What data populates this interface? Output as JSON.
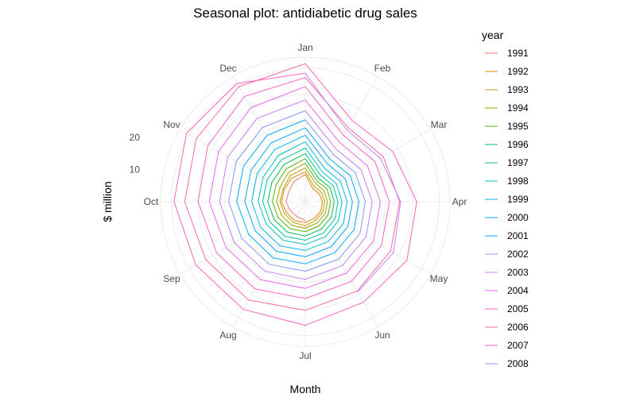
{
  "chart_data": {
    "type": "line",
    "coordinate_system": "polar",
    "title": "Seasonal plot: antidiabetic drug sales",
    "xlabel": "Month",
    "ylabel": "$ million",
    "categories": [
      "Jan",
      "Feb",
      "Mar",
      "Apr",
      "May",
      "Jun",
      "Jul",
      "Aug",
      "Sep",
      "Oct",
      "Nov",
      "Dec"
    ],
    "radial_ticks": [
      10,
      20
    ],
    "rlim": [
      0,
      27
    ],
    "legend_title": "year",
    "legend_position": "right",
    "grid": true,
    "series": [
      {
        "name": "1991",
        "color": "#F8766D",
        "values": [
          null,
          null,
          null,
          null,
          null,
          null,
          3.53,
          3.18,
          3.25,
          3.61,
          3.57,
          4.31
        ]
      },
      {
        "name": "1992",
        "color": "#E38900",
        "values": [
          5.09,
          2.81,
          2.99,
          3.2,
          3.37,
          3.54,
          3.92,
          4.07,
          4.05,
          4.44,
          4.53,
          5.07
        ]
      },
      {
        "name": "1993",
        "color": "#C49A00",
        "values": [
          5.61,
          3.3,
          3.52,
          3.61,
          3.78,
          3.99,
          4.5,
          4.48,
          4.51,
          4.72,
          4.77,
          5.63
        ]
      },
      {
        "name": "1994",
        "color": "#99A800",
        "values": [
          6.3,
          3.9,
          4.07,
          4.13,
          4.32,
          4.56,
          4.95,
          5.08,
          5.1,
          5.35,
          5.45,
          6.3
        ]
      },
      {
        "name": "1995",
        "color": "#53B400",
        "values": [
          7.2,
          4.43,
          4.7,
          4.72,
          4.9,
          5.2,
          5.6,
          5.8,
          5.85,
          6.15,
          6.3,
          7.1
        ]
      },
      {
        "name": "1996",
        "color": "#00BC56",
        "values": [
          8.05,
          5.0,
          5.35,
          5.4,
          5.65,
          5.95,
          6.4,
          6.6,
          6.7,
          7.0,
          7.2,
          8.0
        ]
      },
      {
        "name": "1997",
        "color": "#00C094",
        "values": [
          9.0,
          5.7,
          6.0,
          6.1,
          6.4,
          6.75,
          7.2,
          7.5,
          7.6,
          7.95,
          8.2,
          9.0
        ]
      },
      {
        "name": "1998",
        "color": "#00BFC4",
        "values": [
          10.0,
          6.4,
          6.7,
          6.85,
          7.15,
          7.55,
          8.0,
          8.3,
          8.4,
          8.8,
          9.1,
          10.0
        ]
      },
      {
        "name": "1999",
        "color": "#00B6EB",
        "values": [
          11.2,
          7.2,
          7.6,
          7.8,
          8.2,
          8.6,
          9.1,
          9.5,
          9.6,
          10.0,
          10.4,
          11.3
        ]
      },
      {
        "name": "2000",
        "color": "#06A4FF",
        "values": [
          12.4,
          8.2,
          8.6,
          8.8,
          9.2,
          9.7,
          10.3,
          10.7,
          10.8,
          11.3,
          11.7,
          12.7
        ]
      },
      {
        "name": "2001",
        "color": "#00A9FF",
        "values": [
          13.8,
          9.2,
          9.7,
          10.0,
          10.5,
          11.0,
          11.6,
          12.1,
          12.2,
          12.8,
          13.3,
          14.3
        ]
      },
      {
        "name": "2002",
        "color": "#8494FF",
        "values": [
          15.3,
          10.3,
          10.8,
          11.2,
          11.8,
          12.4,
          13.0,
          13.5,
          13.7,
          14.3,
          14.9,
          16.0
        ]
      },
      {
        "name": "2003",
        "color": "#C77CFF",
        "values": [
          17.0,
          11.4,
          12.0,
          12.5,
          13.1,
          13.8,
          14.5,
          15.0,
          15.3,
          16.0,
          16.7,
          18.0
        ]
      },
      {
        "name": "2004",
        "color": "#ED68ED",
        "values": [
          19.0,
          12.8,
          13.4,
          14.0,
          14.7,
          15.4,
          16.2,
          16.8,
          17.1,
          17.9,
          18.7,
          20.3
        ]
      },
      {
        "name": "2005",
        "color": "#FF61C9",
        "values": [
          21.5,
          14.3,
          15.0,
          15.7,
          16.4,
          17.2,
          18.1,
          18.8,
          19.1,
          20.0,
          21.0,
          22.7
        ]
      },
      {
        "name": "2006",
        "color": "#FF68A1",
        "values": [
          23.2,
          16.0,
          16.8,
          17.6,
          18.4,
          19.3,
          20.3,
          21.2,
          21.5,
          22.5,
          23.5,
          24.8
        ]
      },
      {
        "name": "2007",
        "color": "#FF61C3",
        "values": [
          25.8,
          17.5,
          18.8,
          20.8,
          21.9,
          21.7,
          23.1,
          23.2,
          23.6,
          24.5,
          25.6,
          25.5
        ]
      },
      {
        "name": "2008",
        "color": "#B983FF",
        "values": [
          24.0,
          15.5,
          16.2,
          17.8,
          19.0,
          19.5,
          null,
          null,
          null,
          null,
          null,
          null
        ]
      }
    ]
  }
}
